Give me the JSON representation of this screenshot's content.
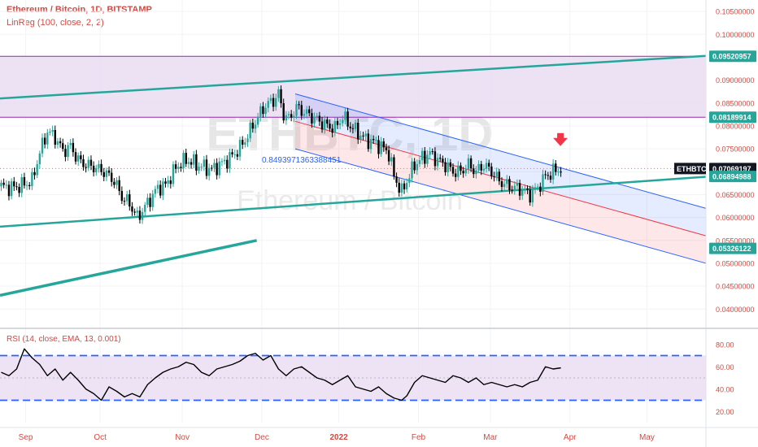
{
  "header": {
    "symbol_line": "Ethereum / Bitcoin, 1D, BITSTAMP",
    "indicator_line": "LinReg (100, close, 2, 2)"
  },
  "watermark": {
    "ticker": "ETHBTC, 1D",
    "name": "Ethereum / Bitcoin"
  },
  "annotation": {
    "linreg_value": "0.8493971363388451"
  },
  "ticker_tag": "ETHBTC",
  "colors": {
    "accent_red": "#d24a43",
    "trend_green": "#26a69a",
    "zone_fill": "#eadcf2",
    "zone_line": "#9c27b0",
    "channel_blue": "#2962ff",
    "channel_red": "#f23645",
    "rsi_line": "#000000",
    "rsi_band": "#2962ff",
    "candle_up": "#26a69a",
    "candle_down": "#000000"
  },
  "chart_data": [
    {
      "type": "candlestick",
      "title": "Ethereum / Bitcoin, 1D, BITSTAMP",
      "x_ticks": [
        "Sep",
        "Oct",
        "Nov",
        "Dec",
        "2022",
        "Feb",
        "Mar",
        "Apr",
        "May"
      ],
      "y_ticks": [
        "0.10500000",
        "0.10000000",
        "0.09500000",
        "0.09000000",
        "0.08500000",
        "0.08000000",
        "0.07500000",
        "0.07000000",
        "0.06500000",
        "0.06000000",
        "0.05500000",
        "0.05000000",
        "0.04500000",
        "0.04000000"
      ],
      "ylim": [
        0.0365,
        0.1075
      ],
      "price_labels": [
        {
          "label": "0.09520957",
          "value": 0.09520957,
          "style": "green"
        },
        {
          "label": "0.08189914",
          "value": 0.08189914,
          "style": "green"
        },
        {
          "label": "0.07069197",
          "value": 0.07069197,
          "style": "dark"
        },
        {
          "label": "0.06894988",
          "value": 0.06894988,
          "style": "green"
        },
        {
          "label": "0.05326122",
          "value": 0.05326122,
          "style": "green"
        }
      ],
      "close_path": [
        [
          0,
          0.0668
        ],
        [
          4,
          0.0665
        ],
        [
          8,
          0.067
        ],
        [
          12,
          0.068
        ],
        [
          15,
          0.0742
        ],
        [
          18,
          0.0788
        ],
        [
          21,
          0.0775
        ],
        [
          24,
          0.0745
        ],
        [
          27,
          0.0755
        ],
        [
          30,
          0.0725
        ],
        [
          33,
          0.0715
        ],
        [
          36,
          0.071
        ],
        [
          40,
          0.07
        ],
        [
          44,
          0.068
        ],
        [
          47,
          0.0645
        ],
        [
          50,
          0.063
        ],
        [
          53,
          0.06
        ],
        [
          55,
          0.0615
        ],
        [
          58,
          0.064
        ],
        [
          61,
          0.0665
        ],
        [
          64,
          0.067
        ],
        [
          67,
          0.07
        ],
        [
          70,
          0.072
        ],
        [
          73,
          0.0725
        ],
        [
          76,
          0.0715
        ],
        [
          79,
          0.071
        ],
        [
          82,
          0.0705
        ],
        [
          85,
          0.0715
        ],
        [
          88,
          0.0725
        ],
        [
          91,
          0.074
        ],
        [
          94,
          0.076
        ],
        [
          97,
          0.079
        ],
        [
          100,
          0.082
        ],
        [
          103,
          0.0845
        ],
        [
          106,
          0.0855
        ],
        [
          108,
          0.087
        ],
        [
          110,
          0.0825
        ],
        [
          112,
          0.0815
        ],
        [
          115,
          0.084
        ],
        [
          118,
          0.083
        ],
        [
          121,
          0.082
        ],
        [
          124,
          0.081
        ],
        [
          127,
          0.08
        ],
        [
          130,
          0.0795
        ],
        [
          133,
          0.082
        ],
        [
          136,
          0.08
        ],
        [
          139,
          0.0785
        ],
        [
          142,
          0.077
        ],
        [
          145,
          0.0765
        ],
        [
          148,
          0.0755
        ],
        [
          151,
          0.074
        ],
        [
          153,
          0.069
        ],
        [
          156,
          0.0655
        ],
        [
          158,
          0.068
        ],
        [
          161,
          0.0715
        ],
        [
          164,
          0.073
        ],
        [
          167,
          0.074
        ],
        [
          170,
          0.0725
        ],
        [
          173,
          0.0715
        ],
        [
          176,
          0.07
        ],
        [
          179,
          0.07
        ],
        [
          182,
          0.0715
        ],
        [
          185,
          0.07
        ],
        [
          188,
          0.0715
        ],
        [
          191,
          0.07
        ],
        [
          194,
          0.068
        ],
        [
          197,
          0.067
        ],
        [
          200,
          0.0665
        ],
        [
          203,
          0.066
        ],
        [
          206,
          0.065
        ],
        [
          209,
          0.0665
        ],
        [
          212,
          0.069
        ],
        [
          215,
          0.07
        ],
        [
          218,
          0.0707
        ]
      ],
      "trend_lines": [
        {
          "from": [
            0,
            0.086
          ],
          "to": [
            275,
            0.0953
          ],
          "width": 2.5
        },
        {
          "from": [
            0,
            0.058
          ],
          "to": [
            275,
            0.0689
          ],
          "width": 2.5
        },
        {
          "from": [
            0,
            0.043
          ],
          "to": [
            100,
            0.055
          ],
          "width": 3.5
        }
      ],
      "zone": {
        "top": 0.0952,
        "bottom": 0.0819
      },
      "regression_channel": {
        "start_x": 115,
        "end_x": 275,
        "start": {
          "upper": 0.087,
          "mid": 0.081,
          "lower": 0.075
        },
        "end": {
          "upper": 0.062,
          "mid": 0.056,
          "lower": 0.05
        },
        "label_at": [
          102,
          0.072
        ]
      },
      "last_price": 0.07069197,
      "arrow_at": [
        218,
        0.0763
      ],
      "x_tick_positions": [
        10,
        39,
        71,
        102,
        132,
        163,
        191,
        222,
        252
      ],
      "x_range": [
        0,
        275
      ]
    },
    {
      "type": "line",
      "title": "RSI (14, close, EMA, 13, 0.001)",
      "y_ticks": [
        "80.00",
        "60.00",
        "40.00",
        "20.00"
      ],
      "ylim": [
        10,
        90
      ],
      "bands": {
        "upper": 70,
        "lower": 30,
        "mid": 50
      },
      "values": [
        [
          0,
          55
        ],
        [
          3,
          52
        ],
        [
          6,
          58
        ],
        [
          9,
          76
        ],
        [
          12,
          68
        ],
        [
          15,
          62
        ],
        [
          18,
          52
        ],
        [
          21,
          58
        ],
        [
          24,
          48
        ],
        [
          27,
          55
        ],
        [
          30,
          48
        ],
        [
          33,
          40
        ],
        [
          36,
          36
        ],
        [
          39,
          30
        ],
        [
          42,
          42
        ],
        [
          45,
          38
        ],
        [
          48,
          33
        ],
        [
          51,
          36
        ],
        [
          54,
          33
        ],
        [
          57,
          44
        ],
        [
          60,
          50
        ],
        [
          63,
          55
        ],
        [
          66,
          58
        ],
        [
          69,
          60
        ],
        [
          72,
          64
        ],
        [
          75,
          62
        ],
        [
          78,
          55
        ],
        [
          81,
          52
        ],
        [
          84,
          58
        ],
        [
          87,
          60
        ],
        [
          90,
          62
        ],
        [
          93,
          65
        ],
        [
          96,
          70
        ],
        [
          99,
          72
        ],
        [
          102,
          66
        ],
        [
          105,
          70
        ],
        [
          108,
          58
        ],
        [
          111,
          52
        ],
        [
          114,
          58
        ],
        [
          117,
          60
        ],
        [
          120,
          55
        ],
        [
          123,
          50
        ],
        [
          126,
          48
        ],
        [
          129,
          44
        ],
        [
          132,
          48
        ],
        [
          135,
          52
        ],
        [
          138,
          42
        ],
        [
          141,
          40
        ],
        [
          144,
          38
        ],
        [
          147,
          42
        ],
        [
          150,
          36
        ],
        [
          153,
          32
        ],
        [
          156,
          30
        ],
        [
          158,
          34
        ],
        [
          161,
          46
        ],
        [
          164,
          52
        ],
        [
          167,
          50
        ],
        [
          170,
          48
        ],
        [
          173,
          46
        ],
        [
          176,
          52
        ],
        [
          179,
          50
        ],
        [
          182,
          46
        ],
        [
          185,
          50
        ],
        [
          188,
          44
        ],
        [
          191,
          46
        ],
        [
          194,
          44
        ],
        [
          197,
          42
        ],
        [
          200,
          44
        ],
        [
          203,
          42
        ],
        [
          206,
          46
        ],
        [
          209,
          48
        ],
        [
          212,
          60
        ],
        [
          215,
          58
        ],
        [
          218,
          59
        ]
      ]
    }
  ]
}
